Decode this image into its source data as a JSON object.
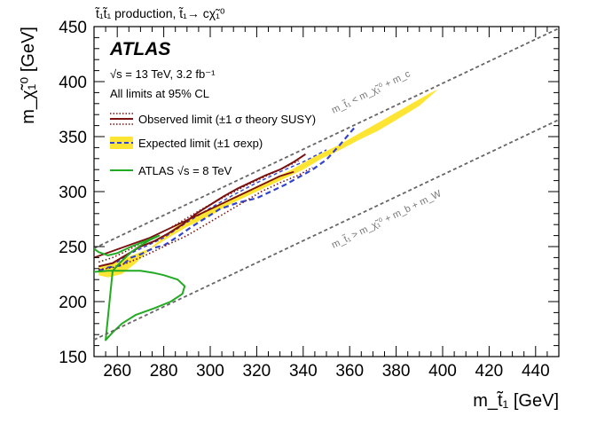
{
  "chart_data": {
    "type": "line",
    "title": "t̃₁t̃₁ production, t̃₁→ cχ̃₁⁰",
    "xlabel": "m_t̃₁ [GeV]",
    "ylabel": "m_χ̃₁⁰ [GeV]",
    "xlim": [
      250,
      450
    ],
    "ylim": [
      150,
      450
    ],
    "xticks": [
      260,
      280,
      300,
      320,
      340,
      360,
      380,
      400,
      420,
      440
    ],
    "yticks": [
      150,
      200,
      250,
      300,
      350,
      400,
      450
    ],
    "experiment": "ATLAS",
    "energy_lumi": "√s = 13 TeV, 3.2 fb⁻¹",
    "cl_text": "All limits at 95% CL",
    "legend": [
      {
        "key": "observed",
        "label": "Observed limit (±1 σ theory SUSY)",
        "color": "#7a1010"
      },
      {
        "key": "expected",
        "label": "Expected limit (±1 σexp)",
        "color": "#3344cc",
        "band_color": "#ffe533"
      },
      {
        "key": "atlas8",
        "label": "ATLAS √s = 8 TeV",
        "color": "#22aa22"
      }
    ],
    "diagonal_upper_label": "m_t̃₁ < m_χ̃₁⁰ + m_c",
    "diagonal_lower_label": "m_t̃₁ > m_χ̃₁⁰ + m_b + m_W",
    "series": [
      {
        "name": "Expected band",
        "kind": "band",
        "x": [
          252,
          260,
          264,
          270,
          276,
          282,
          290,
          300,
          308,
          316,
          324,
          332,
          340,
          348,
          356,
          364,
          372,
          380,
          390,
          398,
          395,
          385,
          375,
          365,
          355,
          345,
          335,
          325,
          315,
          305,
          295,
          285,
          275,
          268,
          262,
          256,
          252
        ],
        "y": [
          232,
          236,
          240,
          245,
          250,
          258,
          268,
          278,
          288,
          296,
          304,
          312,
          320,
          330,
          338,
          347,
          355,
          365,
          378,
          393,
          390,
          378,
          366,
          354,
          342,
          332,
          320,
          310,
          300,
          290,
          280,
          268,
          250,
          235,
          225,
          222,
          224
        ]
      },
      {
        "name": "Expected limit",
        "kind": "line",
        "style": "dashed",
        "x": [
          252,
          256,
          262,
          266,
          270,
          276,
          280,
          286,
          292,
          298,
          304,
          312,
          320,
          326,
          332,
          338,
          344,
          350,
          356,
          362
        ],
        "y": [
          228,
          231,
          233,
          240,
          243,
          249,
          251,
          259,
          268,
          276,
          284,
          290,
          294,
          300,
          306,
          313,
          320,
          329,
          343,
          358
        ]
      },
      {
        "name": "Expected +1σ",
        "kind": "line",
        "style": "dashed",
        "x": [
          252,
          260,
          266,
          272,
          280,
          290,
          300,
          310,
          320,
          330,
          340,
          350
        ],
        "y": [
          232,
          236,
          244,
          250,
          258,
          272,
          285,
          297,
          308,
          318,
          327,
          338
        ]
      },
      {
        "name": "Observed limit",
        "kind": "line",
        "style": "solid",
        "x": [
          252,
          258,
          262,
          266,
          270,
          276,
          282,
          288,
          294,
          300,
          306,
          312,
          318,
          324,
          330,
          336,
          341
        ],
        "y": [
          232,
          235,
          240,
          245,
          250,
          255,
          262,
          270,
          280,
          288,
          296,
          303,
          309,
          315,
          320,
          327,
          334
        ]
      },
      {
        "name": "Observed +1σ theory",
        "kind": "line",
        "style": "dotted",
        "x": [
          252,
          258,
          264,
          270,
          276,
          282,
          290,
          298,
          306,
          314,
          322,
          330,
          338
        ],
        "y": [
          236,
          240,
          246,
          253,
          260,
          266,
          276,
          286,
          295,
          304,
          312,
          320,
          328
        ]
      },
      {
        "name": "Observed -1σ theory",
        "kind": "line",
        "style": "dotted",
        "x": [
          252,
          258,
          264,
          270,
          276,
          282,
          290,
          298,
          306,
          314,
          322,
          330,
          338,
          344
        ],
        "y": [
          229,
          231,
          235,
          240,
          246,
          252,
          260,
          270,
          280,
          290,
          300,
          308,
          315,
          322
        ]
      },
      {
        "name": "Observed upper edge",
        "kind": "line",
        "style": "solid",
        "x": [
          250,
          258,
          266,
          274,
          282,
          290,
          298,
          306,
          314,
          322,
          330,
          336
        ],
        "y": [
          240,
          246,
          252,
          258,
          266,
          274,
          282,
          290,
          298,
          306,
          314,
          318
        ]
      },
      {
        "name": "ATLAS 8 TeV",
        "kind": "line",
        "style": "solid",
        "x": [
          250,
          256,
          264,
          270,
          276,
          280,
          286,
          289,
          288,
          283,
          276,
          268,
          262,
          258,
          255,
          258,
          262,
          266,
          270,
          274,
          278,
          266,
          260,
          256,
          252,
          250
        ],
        "y": [
          227,
          228,
          228,
          228,
          226,
          224,
          220,
          214,
          207,
          200,
          194,
          188,
          180,
          172,
          165,
          228,
          237,
          245,
          251,
          256,
          260,
          250,
          244,
          242,
          245,
          248
        ]
      },
      {
        "name": "Kinematic limit upper (m_c)",
        "kind": "line",
        "style": "diagonal",
        "x": [
          250,
          450
        ],
        "y": [
          248.5,
          448.5
        ]
      },
      {
        "name": "Kinematic limit lower (m_b + m_W)",
        "kind": "line",
        "style": "diagonal",
        "x": [
          250,
          450
        ],
        "y": [
          165.3,
          365.3
        ]
      }
    ]
  }
}
